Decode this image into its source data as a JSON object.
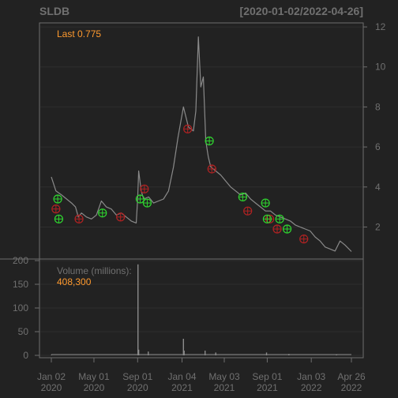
{
  "header": {
    "ticker": "SLDB",
    "range": "[2020-01-02/2022-04-26]"
  },
  "last_label": "Last 0.775",
  "volume": {
    "label": "Volume (millions):",
    "value": "408,300"
  },
  "colors": {
    "background": "#222222",
    "frame": "#6e6e6e",
    "grid": "#2e2e2e",
    "price_line": "#8a8a8a",
    "volume_bar": "#8c8c8c",
    "buy_marker": "#2fd52f",
    "sell_marker": "#b22222",
    "text_muted": "#707070",
    "last_label": "#ff9a2e"
  },
  "chart_data": [
    {
      "type": "line",
      "series": [
        {
          "x": [
            "2020-01-02",
            "2020-01-15",
            "2020-01-31",
            "2020-02-14",
            "2020-02-28",
            "2020-03-10",
            "2020-03-18",
            "2020-03-27",
            "2020-04-10",
            "2020-04-24",
            "2020-05-08",
            "2020-05-22",
            "2020-06-05",
            "2020-06-19",
            "2020-07-03",
            "2020-07-17",
            "2020-07-31",
            "2020-08-14",
            "2020-08-28",
            "2020-09-01",
            "2020-09-04",
            "2020-09-11",
            "2020-09-18",
            "2020-10-02",
            "2020-10-16",
            "2020-10-30",
            "2020-11-13",
            "2020-11-27",
            "2020-12-11",
            "2020-12-24",
            "2021-01-08",
            "2021-01-22",
            "2021-02-05",
            "2021-02-12",
            "2021-02-19",
            "2021-02-26",
            "2021-03-05",
            "2021-03-12",
            "2021-03-19",
            "2021-03-26",
            "2021-04-09",
            "2021-04-23",
            "2021-05-07",
            "2021-05-21",
            "2021-06-04",
            "2021-06-18",
            "2021-07-02",
            "2021-07-16",
            "2021-07-30",
            "2021-08-13",
            "2021-08-27",
            "2021-09-10",
            "2021-09-24",
            "2021-10-08",
            "2021-10-22",
            "2021-11-05",
            "2021-11-19",
            "2021-12-03",
            "2021-12-17",
            "2021-12-31",
            "2022-01-14",
            "2022-01-28",
            "2022-02-11",
            "2022-02-25",
            "2022-03-11",
            "2022-03-25",
            "2022-04-08",
            "2022-04-26"
          ],
          "y": [
            4.5,
            3.8,
            3.6,
            3.4,
            3.2,
            3.0,
            2.5,
            2.7,
            2.5,
            2.4,
            2.6,
            3.3,
            3.0,
            2.9,
            2.6,
            2.7,
            2.5,
            2.3,
            2.2,
            3.4,
            4.8,
            3.8,
            3.4,
            3.5,
            3.2,
            3.3,
            3.4,
            3.8,
            5.0,
            6.5,
            8.0,
            7.0,
            6.8,
            7.8,
            11.5,
            9.0,
            9.5,
            6.3,
            5.5,
            5.0,
            4.8,
            4.6,
            4.3,
            4.0,
            3.8,
            3.6,
            3.7,
            3.4,
            3.2,
            3.0,
            2.8,
            2.8,
            2.6,
            2.5,
            2.4,
            2.3,
            2.1,
            2.0,
            1.9,
            1.8,
            1.5,
            1.3,
            1.0,
            0.9,
            0.8,
            1.3,
            1.1,
            0.775
          ]
        }
      ],
      "markers": {
        "buy": [
          {
            "x": "2020-01-20",
            "y": 3.4
          },
          {
            "x": "2020-01-23",
            "y": 2.4
          },
          {
            "x": "2020-05-25",
            "y": 2.7
          },
          {
            "x": "2020-09-08",
            "y": 3.4
          },
          {
            "x": "2020-09-28",
            "y": 3.2
          },
          {
            "x": "2021-03-22",
            "y": 6.3
          },
          {
            "x": "2021-06-24",
            "y": 3.5
          },
          {
            "x": "2021-08-27",
            "y": 3.2
          },
          {
            "x": "2021-09-01",
            "y": 2.4
          },
          {
            "x": "2021-10-06",
            "y": 2.4
          },
          {
            "x": "2021-10-27",
            "y": 1.9
          }
        ],
        "sell": [
          {
            "x": "2020-01-15",
            "y": 2.9
          },
          {
            "x": "2020-03-20",
            "y": 2.4
          },
          {
            "x": "2020-07-15",
            "y": 2.5
          },
          {
            "x": "2020-09-20",
            "y": 3.9
          },
          {
            "x": "2021-01-20",
            "y": 6.9
          },
          {
            "x": "2021-03-29",
            "y": 4.9
          },
          {
            "x": "2021-07-08",
            "y": 2.8
          },
          {
            "x": "2021-09-08",
            "y": 2.4
          },
          {
            "x": "2021-09-29",
            "y": 1.9
          },
          {
            "x": "2021-12-13",
            "y": 1.4
          }
        ]
      },
      "ylim": [
        0.4,
        12.2
      ],
      "y_ticks": [
        "2",
        "4",
        "6",
        "8",
        "10",
        "12"
      ],
      "grid": true
    },
    {
      "type": "bar",
      "x": [
        "2020-01-02",
        "2020-09-02",
        "2020-09-04",
        "2020-10-01",
        "2021-01-08",
        "2021-01-10",
        "2021-03-10",
        "2021-04-09",
        "2021-08-30",
        "2021-11-01",
        "2022-03-15"
      ],
      "values": [
        1,
        192,
        12,
        8,
        35,
        10,
        10,
        6,
        6,
        3,
        2
      ],
      "ylim": [
        0,
        200
      ],
      "y_ticks": [
        "0",
        "50",
        "100",
        "150",
        "200"
      ]
    }
  ],
  "x_axis": {
    "ticks": [
      {
        "date": "2020-01-02",
        "line1": "Jan 02",
        "line2": "2020"
      },
      {
        "date": "2020-05-01",
        "line1": "May 01",
        "line2": "2020"
      },
      {
        "date": "2020-09-01",
        "line1": "Sep 01",
        "line2": "2020"
      },
      {
        "date": "2021-01-04",
        "line1": "Jan 04",
        "line2": "2021"
      },
      {
        "date": "2021-05-03",
        "line1": "May 03",
        "line2": "2021"
      },
      {
        "date": "2021-09-01",
        "line1": "Sep 01",
        "line2": "2021"
      },
      {
        "date": "2022-01-03",
        "line1": "Jan 03",
        "line2": "2022"
      },
      {
        "date": "2022-04-26",
        "line1": "Apr 26",
        "line2": "2022"
      }
    ]
  }
}
